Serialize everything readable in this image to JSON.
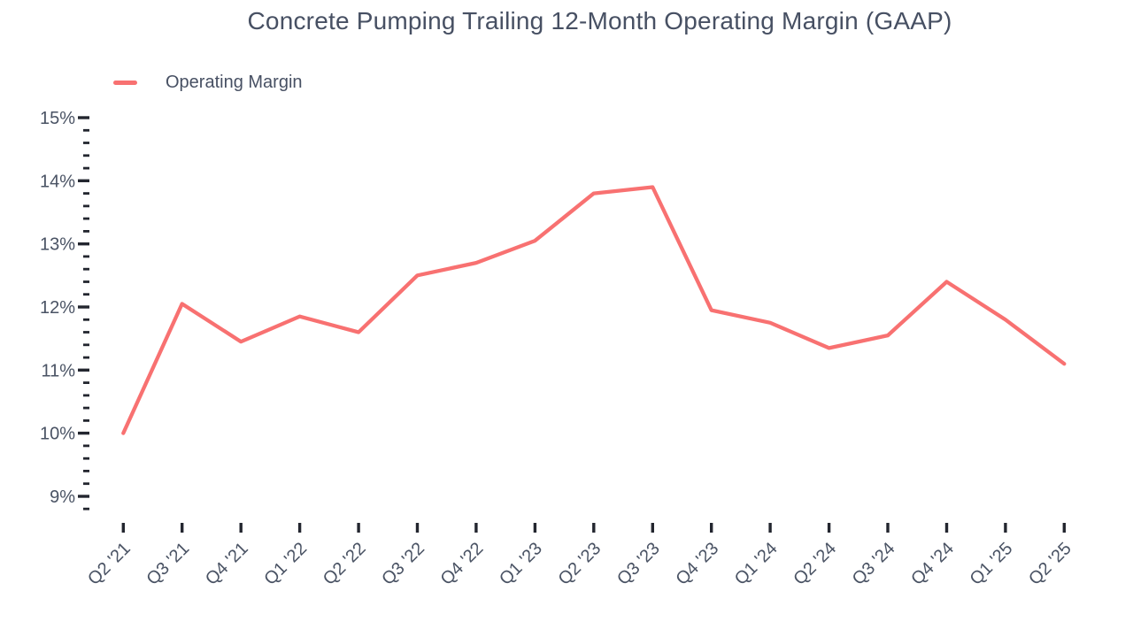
{
  "title": "Concrete Pumping Trailing 12-Month Operating Margin (GAAP)",
  "legend": {
    "label": "Operating Margin",
    "marker": "line-swatch"
  },
  "colors": {
    "line": "#F87171",
    "axis_label": "#4A5364",
    "tick": "#23262F",
    "title": "#475063",
    "background": "#FFFFFF"
  },
  "chart_data": {
    "type": "line",
    "title": "Concrete Pumping Trailing 12-Month Operating Margin (GAAP)",
    "xlabel": "",
    "ylabel": "",
    "categories": [
      "Q2 '21",
      "Q3 '21",
      "Q4 '21",
      "Q1 '22",
      "Q2 '22",
      "Q3 '22",
      "Q4 '22",
      "Q1 '23",
      "Q2 '23",
      "Q3 '23",
      "Q4 '23",
      "Q1 '24",
      "Q2 '24",
      "Q3 '24",
      "Q4 '24",
      "Q1 '25",
      "Q2 '25"
    ],
    "series": [
      {
        "name": "Operating Margin",
        "color": "#F87171",
        "unit": "%",
        "values": [
          10.0,
          12.05,
          11.45,
          11.85,
          11.6,
          12.5,
          12.7,
          13.05,
          13.8,
          13.9,
          11.95,
          11.75,
          11.35,
          11.55,
          12.4,
          11.8,
          11.1
        ]
      }
    ],
    "y_ticks": [
      "15%",
      "14%",
      "13%",
      "12%",
      "11%",
      "10%",
      "9%"
    ],
    "ylim": [
      8.8,
      15
    ],
    "y_major_step": 1,
    "y_minor_step": 0.2,
    "grid": false,
    "legend_position": "top-left"
  }
}
